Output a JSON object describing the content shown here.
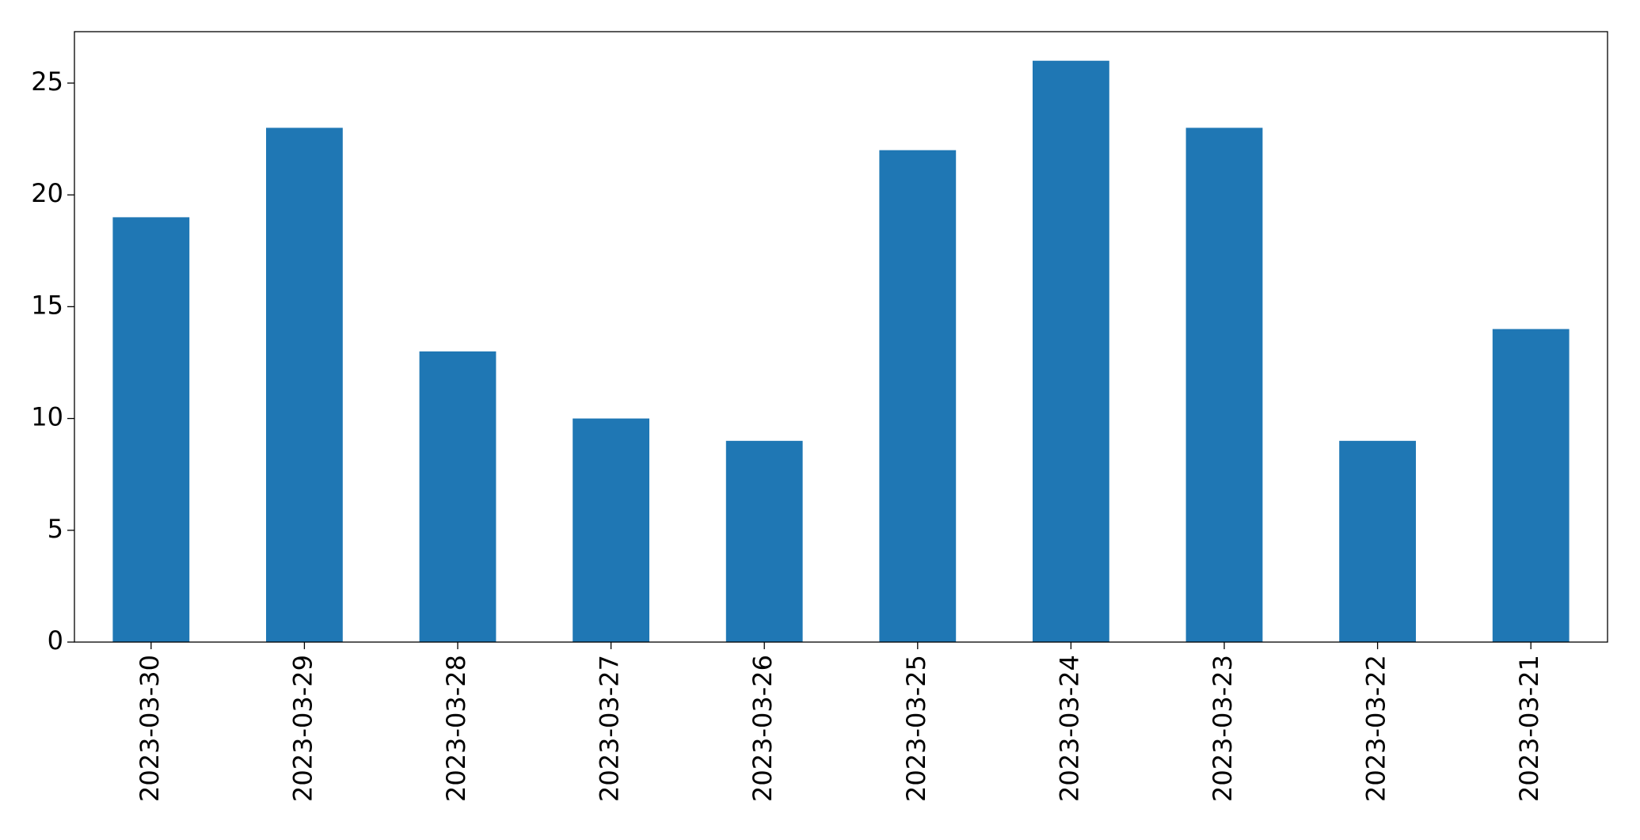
{
  "chart_data": {
    "type": "bar",
    "categories": [
      "2023-03-30",
      "2023-03-29",
      "2023-03-28",
      "2023-03-27",
      "2023-03-26",
      "2023-03-25",
      "2023-03-24",
      "2023-03-23",
      "2023-03-22",
      "2023-03-21"
    ],
    "values": [
      19,
      23,
      13,
      10,
      9,
      22,
      26,
      23,
      9,
      14
    ],
    "color": "#1f77b4",
    "ylim": [
      0,
      27.3
    ],
    "yticks": [
      0,
      5,
      10,
      15,
      20,
      25
    ],
    "grid": false
  }
}
